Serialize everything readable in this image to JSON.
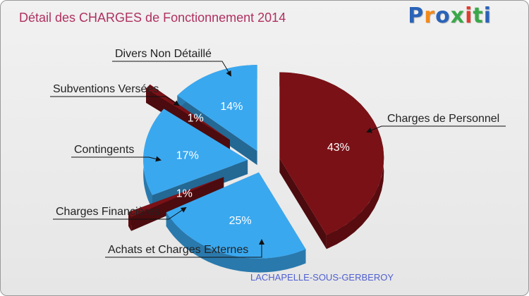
{
  "header": {
    "title": "Détail des CHARGES de Fonctionnement 2014",
    "logo_text": "Proxiti"
  },
  "footer": {
    "commune": "LACHAPELLE-SOUS-GERBEROY"
  },
  "colors": {
    "title": "#b03060",
    "commune": "#4f5fd0",
    "red_slice": "#7a1116",
    "blue_slice": "#3aa8ef",
    "logo": [
      "#2a63b8",
      "#f28a1a",
      "#2a63b8",
      "#3aa84a",
      "#e23b2e",
      "#3aa84a",
      "#2a63b8"
    ]
  },
  "chart_data": {
    "type": "pie",
    "title": "Détail des CHARGES de Fonctionnement 2014",
    "slices": [
      {
        "label": "Charges de Personnel",
        "percent": 43,
        "value_label": "43%",
        "color": "#7a1116"
      },
      {
        "label": "Achats et Charges Externes",
        "percent": 25,
        "value_label": "25%",
        "color": "#3aa8ef"
      },
      {
        "label": "Charges Financières",
        "percent": 1,
        "value_label": "1%",
        "color": "#7a1116"
      },
      {
        "label": "Contingents",
        "percent": 17,
        "value_label": "17%",
        "color": "#3aa8ef"
      },
      {
        "label": "Subventions Versées",
        "percent": 1,
        "value_label": "1%",
        "color": "#7a1116"
      },
      {
        "label": "Divers Non Détaillé",
        "percent": 14,
        "value_label": "14%",
        "color": "#3aa8ef"
      }
    ]
  }
}
